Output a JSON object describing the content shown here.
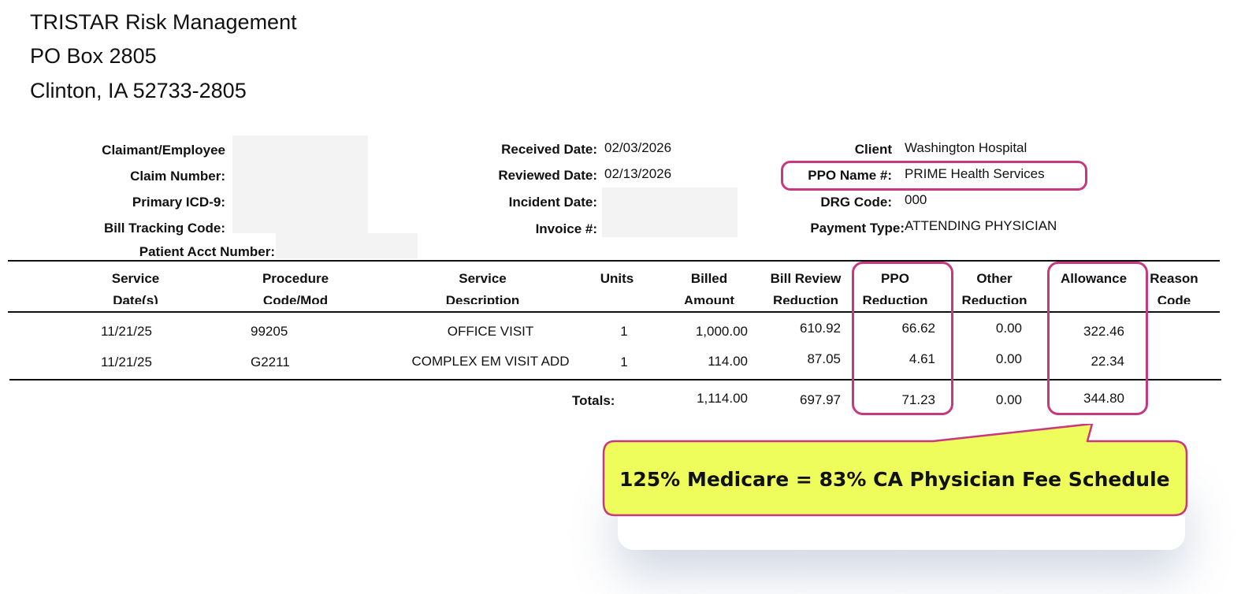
{
  "company": {
    "name": "TRISTAR Risk Management",
    "address1": "PO Box 2805",
    "address2": "Clinton, IA 52733-2805"
  },
  "header": {
    "claimant_label": "Claimant/Employee",
    "claim_number_label": "Claim Number:",
    "primary_icd_label": "Primary ICD-9:",
    "bill_tracking_label": "Bill Tracking Code:",
    "patient_acct_label": "Patient Acct Number:",
    "received_date_label": "Received Date:",
    "received_date": "02/03/2026",
    "reviewed_date_label": "Reviewed Date:",
    "reviewed_date": "02/13/2026",
    "incident_date_label": "Incident Date:",
    "invoice_label": "Invoice #:",
    "client_label": "Client",
    "client": "Washington Hospital",
    "ppo_name_label": "PPO Name #:",
    "ppo_name": "PRIME Health Services",
    "drg_code_label": "DRG Code:",
    "drg_code": "000",
    "payment_type_label": "Payment Type:",
    "payment_type": "ATTENDING PHYSICIAN"
  },
  "table": {
    "columns": {
      "service_dates": [
        "Service",
        "Date(s)"
      ],
      "procedure_code": [
        "Procedure",
        "Code/Mod"
      ],
      "service_description": [
        "Service",
        "Description"
      ],
      "units": [
        "Units",
        ""
      ],
      "billed_amount": [
        "Billed",
        "Amount"
      ],
      "bill_review_reduction": [
        "Bill Review",
        "Reduction"
      ],
      "ppo_reduction": [
        "PPO",
        "Reduction"
      ],
      "other_reduction": [
        "Other",
        "Reduction"
      ],
      "allowance": [
        "Allowance",
        ""
      ],
      "reason_code": [
        "Reason",
        "Code"
      ]
    },
    "rows": [
      {
        "service_date": "11/21/25",
        "procedure_code": "99205",
        "description": "OFFICE VISIT",
        "units": "1",
        "billed": "1,000.00",
        "bill_review_reduction": "610.92",
        "ppo_reduction": "66.62",
        "other_reduction": "0.00",
        "allowance": "322.46"
      },
      {
        "service_date": "11/21/25",
        "procedure_code": "G2211",
        "description": "COMPLEX EM VISIT ADD",
        "units": "1",
        "billed": "114.00",
        "bill_review_reduction": "87.05",
        "ppo_reduction": "4.61",
        "other_reduction": "0.00",
        "allowance": "22.34"
      }
    ],
    "totals": {
      "label": "Totals:",
      "billed": "1,114.00",
      "bill_review_reduction": "697.97",
      "ppo_reduction": "71.23",
      "other_reduction": "0.00",
      "allowance": "344.80"
    }
  },
  "callout": {
    "text": "125% Medicare = 83% CA Physician Fee Schedule",
    "highlight_color": "#c8387e",
    "fill_color": "#eefc5c"
  }
}
